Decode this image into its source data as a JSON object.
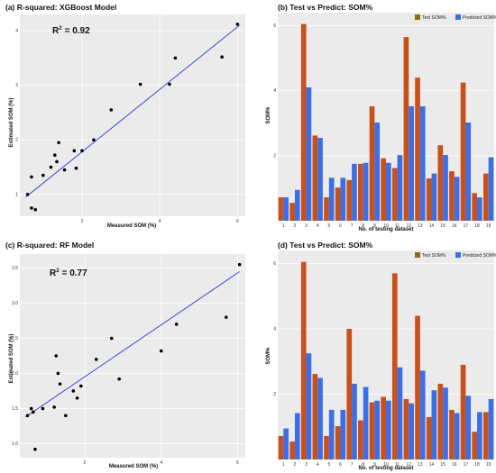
{
  "chart_data": [
    {
      "id": "a",
      "type": "scatter",
      "title": "(a) R-squared: XGBoost Model",
      "xlabel": "Measured SOM (%)",
      "ylabel": "Estimated SOM (%)",
      "annotation": "R",
      "annotation_sup": "2",
      "annotation_value": "= 0.92",
      "xlim": [
        0.4,
        6.2
      ],
      "ylim": [
        0.6,
        4.3
      ],
      "xticks": [
        2,
        4,
        6
      ],
      "yticks": [
        1,
        2,
        3,
        4
      ],
      "points": [
        {
          "x": 0.6,
          "y": 1.0
        },
        {
          "x": 0.7,
          "y": 0.75
        },
        {
          "x": 0.8,
          "y": 0.72
        },
        {
          "x": 0.7,
          "y": 1.32
        },
        {
          "x": 1.0,
          "y": 1.35
        },
        {
          "x": 1.2,
          "y": 1.5
        },
        {
          "x": 1.35,
          "y": 1.6
        },
        {
          "x": 1.3,
          "y": 1.72
        },
        {
          "x": 1.55,
          "y": 1.45
        },
        {
          "x": 1.8,
          "y": 1.8
        },
        {
          "x": 1.85,
          "y": 1.48
        },
        {
          "x": 1.4,
          "y": 1.95
        },
        {
          "x": 2.0,
          "y": 1.8
        },
        {
          "x": 2.3,
          "y": 2.0
        },
        {
          "x": 2.75,
          "y": 2.55
        },
        {
          "x": 3.5,
          "y": 3.02
        },
        {
          "x": 4.25,
          "y": 3.02
        },
        {
          "x": 4.4,
          "y": 3.5
        },
        {
          "x": 5.6,
          "y": 3.52
        },
        {
          "x": 6.0,
          "y": 4.12
        }
      ],
      "fit_line": {
        "x": [
          0.55,
          6.05
        ],
        "y": [
          0.95,
          4.1
        ]
      },
      "point_color": "#000000",
      "line_color": "#3a4bd6"
    },
    {
      "id": "b",
      "type": "bar",
      "title": "(b) Test vs Predict: SOM%",
      "xlabel": "No. of testing dataset",
      "ylabel": "SOM%",
      "ylim": [
        0,
        6.4
      ],
      "yticks": [
        2,
        4,
        6
      ],
      "categories": [
        "1",
        "2",
        "3",
        "4",
        "5",
        "6",
        "7",
        "8",
        "9",
        "10",
        "11",
        "12",
        "13",
        "14",
        "15",
        "16",
        "17",
        "18",
        "19"
      ],
      "series": [
        {
          "name": "Test SOM%",
          "values": [
            0.72,
            0.55,
            6.05,
            2.62,
            0.72,
            1.02,
            1.25,
            1.75,
            3.52,
            1.92,
            1.62,
            5.65,
            4.4,
            1.3,
            2.32,
            1.52,
            4.25,
            0.85,
            1.45
          ]
        },
        {
          "name": "Predicted SOM%",
          "values": [
            0.72,
            0.95,
            4.1,
            2.55,
            1.32,
            1.32,
            1.75,
            1.78,
            3.02,
            1.78,
            2.02,
            3.52,
            3.52,
            1.45,
            2.02,
            1.35,
            3.02,
            0.72,
            1.95
          ]
        }
      ],
      "legend_position": "top-right"
    },
    {
      "id": "c",
      "type": "scatter",
      "title": "(c) R-squared: RF Model",
      "xlabel": "Measured SOM (%)",
      "ylabel": "Estimated SOM (%)",
      "annotation": "R",
      "annotation_sup": "2",
      "annotation_value": "= 0.77",
      "xlim": [
        0.3,
        6.2
      ],
      "ylim": [
        0.8,
        3.7
      ],
      "xticks": [
        2,
        4,
        6
      ],
      "yticks": [
        1.0,
        1.5,
        2.0,
        2.5,
        3.0,
        3.5
      ],
      "tick_labels": [
        "1.0",
        "1.5",
        "2.0",
        "2.5",
        "3.0",
        "3.5"
      ],
      "points": [
        {
          "x": 0.5,
          "y": 1.4
        },
        {
          "x": 0.6,
          "y": 1.5
        },
        {
          "x": 0.65,
          "y": 1.45
        },
        {
          "x": 0.7,
          "y": 0.92
        },
        {
          "x": 0.9,
          "y": 1.5
        },
        {
          "x": 1.2,
          "y": 1.52
        },
        {
          "x": 1.25,
          "y": 2.25
        },
        {
          "x": 1.3,
          "y": 2.0
        },
        {
          "x": 1.5,
          "y": 1.4
        },
        {
          "x": 1.35,
          "y": 1.85
        },
        {
          "x": 1.7,
          "y": 1.75
        },
        {
          "x": 1.8,
          "y": 1.65
        },
        {
          "x": 1.9,
          "y": 1.82
        },
        {
          "x": 2.3,
          "y": 2.2
        },
        {
          "x": 2.7,
          "y": 2.5
        },
        {
          "x": 2.9,
          "y": 1.92
        },
        {
          "x": 4.0,
          "y": 2.32
        },
        {
          "x": 4.4,
          "y": 2.7
        },
        {
          "x": 5.7,
          "y": 2.8
        },
        {
          "x": 6.05,
          "y": 3.55
        }
      ],
      "fit_line": {
        "x": [
          0.45,
          6.05
        ],
        "y": [
          1.38,
          3.45
        ]
      },
      "point_color": "#000000",
      "line_color": "#3a4bd6"
    },
    {
      "id": "d",
      "type": "bar",
      "title": "(d) Test vs Predict: SOM%",
      "xlabel": "No. of testing dataset",
      "ylabel": "SOM%",
      "ylim": [
        0,
        6.4
      ],
      "yticks": [
        2,
        4,
        6
      ],
      "categories": [
        "1",
        "2",
        "3",
        "4",
        "5",
        "6",
        "7",
        "8",
        "9",
        "10",
        "11",
        "12",
        "13",
        "14",
        "15",
        "16",
        "17",
        "18",
        "19"
      ],
      "series": [
        {
          "name": "Test SOM%",
          "values": [
            0.72,
            0.55,
            6.05,
            2.62,
            0.72,
            1.02,
            4.0,
            1.2,
            1.75,
            1.92,
            5.7,
            1.85,
            4.4,
            1.3,
            2.32,
            1.52,
            2.9,
            0.85,
            1.45
          ]
        },
        {
          "name": "Predicted SOM%",
          "values": [
            0.95,
            1.42,
            3.25,
            2.5,
            1.52,
            1.52,
            2.32,
            2.22,
            1.8,
            1.8,
            2.82,
            1.72,
            2.72,
            2.12,
            2.2,
            1.42,
            1.95,
            1.45,
            1.85
          ]
        }
      ],
      "legend_position": "top-right"
    }
  ],
  "colors": {
    "panel_bg": "#ebebeb",
    "grid_major": "#ffffff",
    "test_bar": "#c8501a",
    "pred_bar": "#3c6ee6",
    "test_legend": "#8c6a16"
  }
}
